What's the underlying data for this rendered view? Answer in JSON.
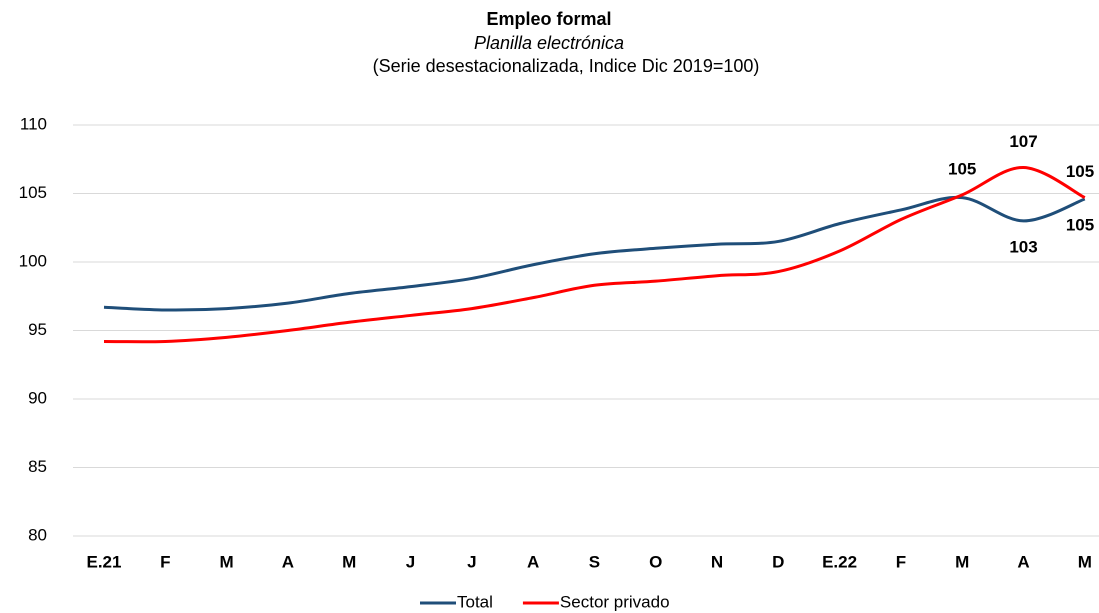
{
  "chart_data": {
    "type": "line",
    "title": "Empleo formal",
    "subtitle": "Planilla electrónica",
    "subtitle2": "(Serie desestacionalizada, Indice Dic 2019=100)",
    "categories": [
      "E.21",
      "F",
      "M",
      "A",
      "M",
      "J",
      "J",
      "A",
      "S",
      "O",
      "N",
      "D",
      "E.22",
      "F",
      "M",
      "A",
      "M"
    ],
    "series": [
      {
        "name": "Total",
        "color": "#1f4e79",
        "values": [
          96.7,
          96.5,
          96.6,
          97.0,
          97.7,
          98.2,
          98.8,
          99.8,
          100.6,
          101.0,
          101.3,
          101.5,
          102.8,
          103.8,
          104.7,
          103.0,
          104.6
        ],
        "value_labels": [
          null,
          null,
          null,
          null,
          null,
          null,
          null,
          null,
          null,
          null,
          null,
          null,
          null,
          null,
          null,
          "103",
          "105"
        ]
      },
      {
        "name": "Sector privado",
        "color": "#ff0000",
        "values": [
          94.2,
          94.2,
          94.5,
          95.0,
          95.6,
          96.1,
          96.6,
          97.4,
          98.3,
          98.6,
          99.0,
          99.3,
          100.8,
          103.1,
          104.9,
          106.9,
          104.7
        ],
        "value_labels": [
          null,
          null,
          null,
          null,
          null,
          null,
          null,
          null,
          null,
          null,
          null,
          null,
          null,
          null,
          "105",
          "107",
          "105"
        ]
      }
    ],
    "ylim": [
      80,
      110
    ],
    "yticks": [
      80,
      85,
      90,
      95,
      100,
      105,
      110
    ],
    "grid": true,
    "legend": "bottom"
  }
}
